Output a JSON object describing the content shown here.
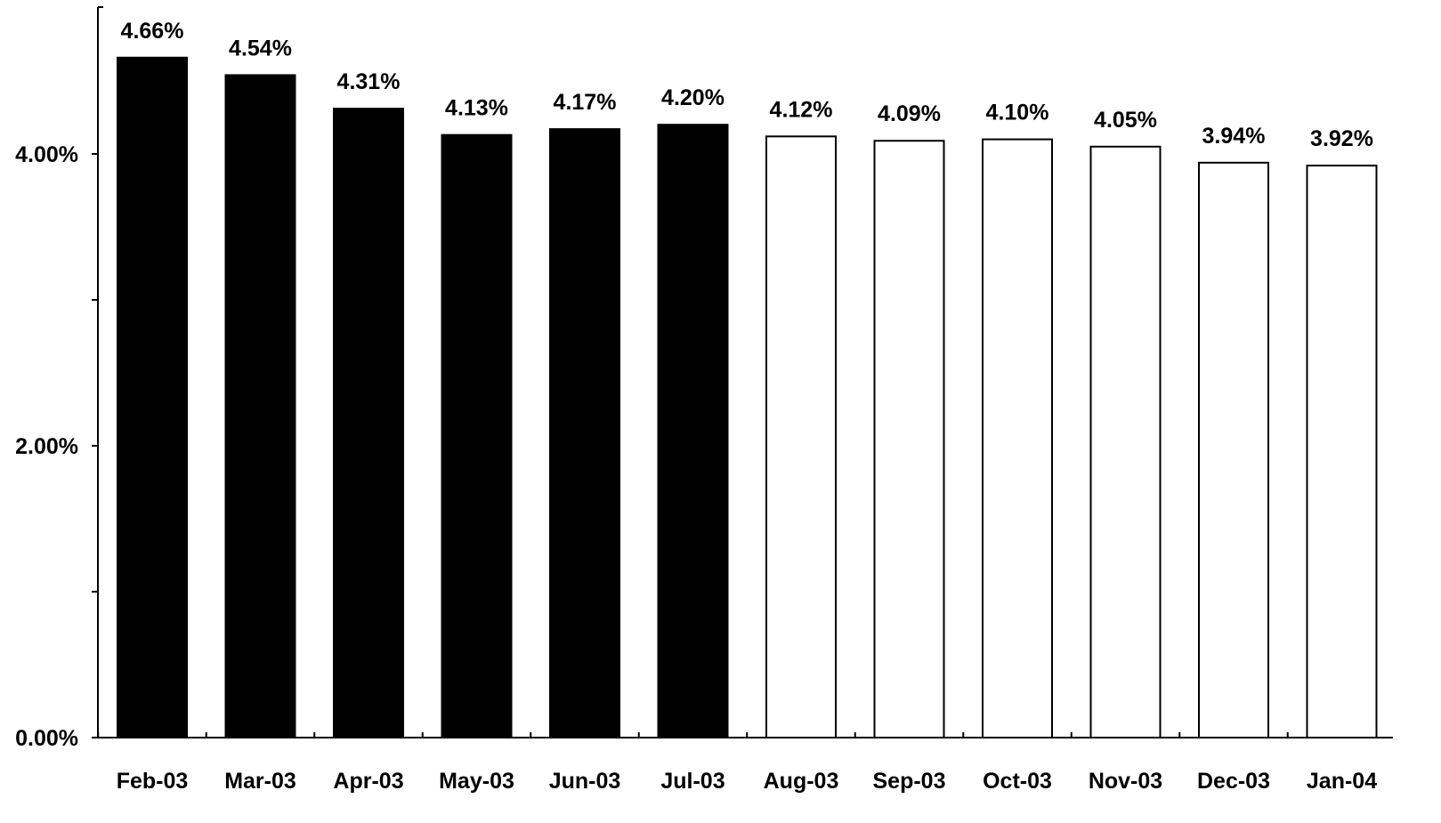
{
  "chart_data": {
    "type": "bar",
    "title": "",
    "xlabel": "",
    "ylabel": "",
    "categories": [
      "Feb-03",
      "Mar-03",
      "Apr-03",
      "May-03",
      "Jun-03",
      "Jul-03",
      "Aug-03",
      "Sep-03",
      "Oct-03",
      "Nov-03",
      "Dec-03",
      "Jan-04"
    ],
    "values": [
      4.66,
      4.54,
      4.31,
      4.13,
      4.17,
      4.2,
      4.12,
      4.09,
      4.1,
      4.05,
      3.94,
      3.92
    ],
    "data_labels": [
      "4.66%",
      "4.54%",
      "4.31%",
      "4.13%",
      "4.17%",
      "4.20%",
      "4.12%",
      "4.09%",
      "4.10%",
      "4.05%",
      "3.94%",
      "3.92%"
    ],
    "bar_fills": [
      "#000000",
      "#000000",
      "#000000",
      "#000000",
      "#000000",
      "#000000",
      "#ffffff",
      "#ffffff",
      "#ffffff",
      "#ffffff",
      "#ffffff",
      "#ffffff"
    ],
    "bar_stroke": "#000000",
    "ylim": [
      0,
      4.66
    ],
    "yticks": [
      {
        "value": 0,
        "label": "0.00%"
      },
      {
        "value": 1,
        "label": ""
      },
      {
        "value": 2,
        "label": "2.00%"
      },
      {
        "value": 3,
        "label": ""
      },
      {
        "value": 4,
        "label": "4.00%"
      }
    ],
    "grid": false,
    "legend": "none"
  }
}
